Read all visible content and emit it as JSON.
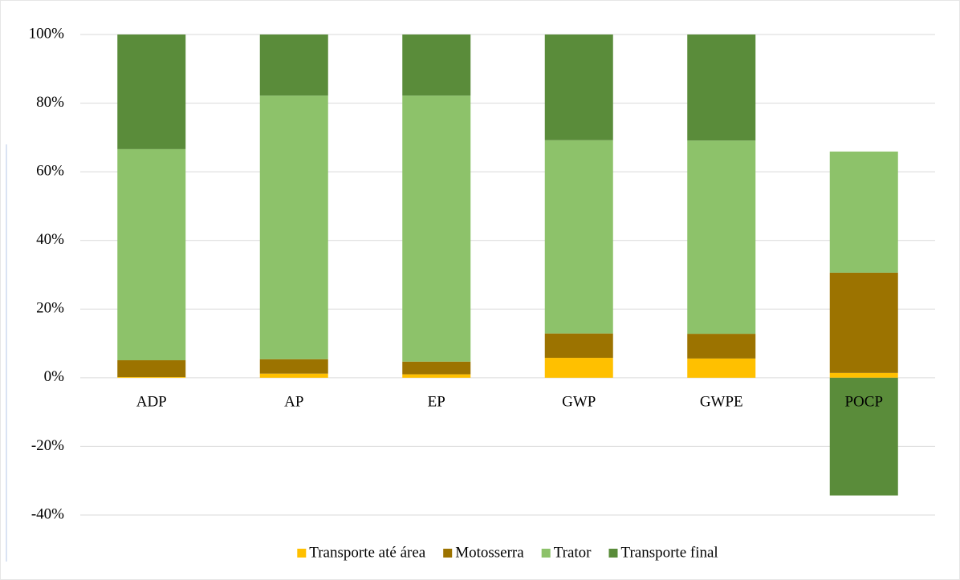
{
  "chart_data": {
    "type": "stacked_bar",
    "categories": [
      "ADP",
      "AP",
      "EP",
      "GWP",
      "GWPE",
      "POCP"
    ],
    "series": [
      {
        "name": "Transporte até área",
        "color": "#ffc000",
        "values": [
          0.2,
          1.2,
          1.0,
          5.8,
          5.6,
          1.4
        ]
      },
      {
        "name": "Motosserra",
        "color": "#9c7300",
        "values": [
          4.9,
          4.2,
          3.7,
          7.1,
          7.2,
          29.2
        ]
      },
      {
        "name": "Trator",
        "color": "#8dc26a",
        "values": [
          61.5,
          76.8,
          77.5,
          56.3,
          56.3,
          35.3
        ]
      },
      {
        "name": "Transporte final",
        "color": "#5a8c3a",
        "values": [
          33.4,
          17.8,
          17.8,
          30.8,
          30.9,
          -34.3
        ]
      }
    ],
    "ylim": [
      -40,
      100
    ],
    "yticks": [
      {
        "value": -40,
        "label": "-40%"
      },
      {
        "value": -20,
        "label": "-20%"
      },
      {
        "value": 0,
        "label": "0%"
      },
      {
        "value": 20,
        "label": "20%"
      },
      {
        "value": 40,
        "label": "40%"
      },
      {
        "value": 60,
        "label": "60%"
      },
      {
        "value": 80,
        "label": "80%"
      },
      {
        "value": 100,
        "label": "100%"
      }
    ],
    "grid": true,
    "legend": "bottom"
  }
}
